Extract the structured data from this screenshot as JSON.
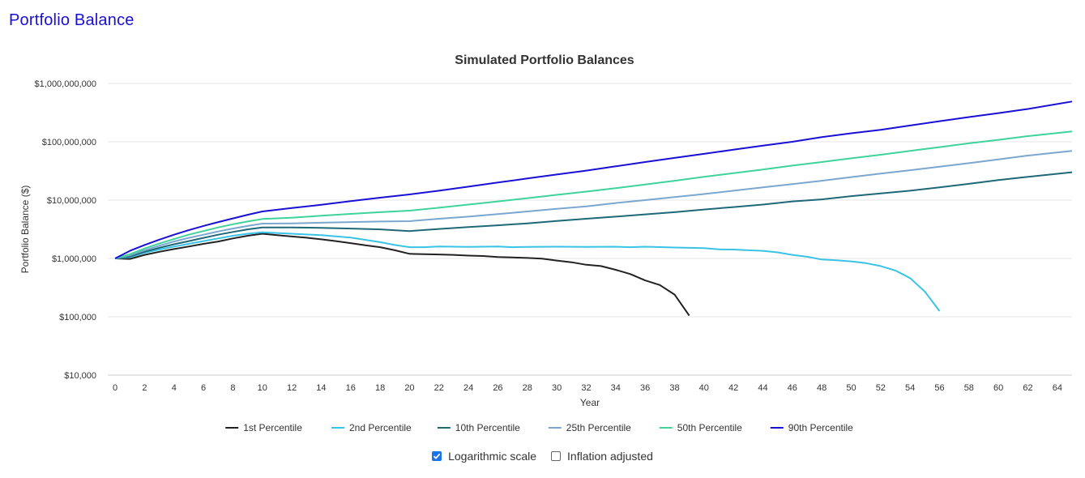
{
  "page": {
    "title": "Portfolio Balance"
  },
  "controls": {
    "log_scale": {
      "label": "Logarithmic scale",
      "checked": true
    },
    "inflation": {
      "label": "Inflation adjusted",
      "checked": false
    }
  },
  "chart_data": {
    "type": "line",
    "title": "Simulated Portfolio Balances",
    "xlabel": "Year",
    "ylabel": "Portfolio Balance ($)",
    "yscale": "log",
    "ylim": [
      10000,
      1000000000
    ],
    "xlim": [
      -0.5,
      65
    ],
    "x_ticks": [
      0,
      2,
      4,
      6,
      8,
      10,
      12,
      14,
      16,
      18,
      20,
      22,
      24,
      26,
      28,
      30,
      32,
      34,
      36,
      38,
      40,
      42,
      44,
      46,
      48,
      50,
      52,
      54,
      56,
      58,
      60,
      62,
      64
    ],
    "y_ticks": [
      {
        "value": 10000,
        "label": "$10,000"
      },
      {
        "value": 100000,
        "label": "$100,000"
      },
      {
        "value": 1000000,
        "label": "$1,000,000"
      },
      {
        "value": 10000000,
        "label": "$10,000,000"
      },
      {
        "value": 100000000,
        "label": "$100,000,000"
      },
      {
        "value": 1000000000,
        "label": "$1,000,000,000"
      }
    ],
    "legend_position": "bottom",
    "series": [
      {
        "name": "1st Percentile",
        "color": "#222222",
        "points": [
          [
            0,
            1000000
          ],
          [
            1,
            980000
          ],
          [
            2,
            1150000
          ],
          [
            3,
            1300000
          ],
          [
            4,
            1450000
          ],
          [
            5,
            1600000
          ],
          [
            6,
            1780000
          ],
          [
            7,
            1950000
          ],
          [
            8,
            2200000
          ],
          [
            9,
            2450000
          ],
          [
            10,
            2650000
          ],
          [
            11,
            2500000
          ],
          [
            12,
            2380000
          ],
          [
            13,
            2270000
          ],
          [
            14,
            2130000
          ],
          [
            15,
            1980000
          ],
          [
            16,
            1830000
          ],
          [
            17,
            1680000
          ],
          [
            18,
            1560000
          ],
          [
            19,
            1380000
          ],
          [
            20,
            1200000
          ],
          [
            21,
            1180000
          ],
          [
            22,
            1170000
          ],
          [
            23,
            1150000
          ],
          [
            24,
            1120000
          ],
          [
            25,
            1100000
          ],
          [
            26,
            1060000
          ],
          [
            27,
            1040000
          ],
          [
            28,
            1020000
          ],
          [
            29,
            990000
          ],
          [
            30,
            920000
          ],
          [
            31,
            860000
          ],
          [
            32,
            780000
          ],
          [
            33,
            740000
          ],
          [
            34,
            640000
          ],
          [
            35,
            540000
          ],
          [
            36,
            420000
          ],
          [
            37,
            350000
          ],
          [
            38,
            240000
          ],
          [
            39,
            105000
          ]
        ]
      },
      {
        "name": "2nd Percentile",
        "color": "#39c3e6",
        "points": [
          [
            0,
            1000000
          ],
          [
            1,
            1050000
          ],
          [
            2,
            1250000
          ],
          [
            3,
            1420000
          ],
          [
            4,
            1600000
          ],
          [
            5,
            1780000
          ],
          [
            6,
            1980000
          ],
          [
            7,
            2200000
          ],
          [
            8,
            2450000
          ],
          [
            9,
            2650000
          ],
          [
            10,
            2800000
          ],
          [
            12,
            2650000
          ],
          [
            14,
            2500000
          ],
          [
            16,
            2280000
          ],
          [
            18,
            1900000
          ],
          [
            19,
            1700000
          ],
          [
            20,
            1560000
          ],
          [
            21,
            1560000
          ],
          [
            22,
            1600000
          ],
          [
            24,
            1580000
          ],
          [
            26,
            1600000
          ],
          [
            27,
            1560000
          ],
          [
            28,
            1580000
          ],
          [
            30,
            1590000
          ],
          [
            32,
            1580000
          ],
          [
            34,
            1590000
          ],
          [
            35,
            1560000
          ],
          [
            36,
            1590000
          ],
          [
            38,
            1540000
          ],
          [
            40,
            1500000
          ],
          [
            41,
            1430000
          ],
          [
            42,
            1420000
          ],
          [
            43,
            1380000
          ],
          [
            44,
            1350000
          ],
          [
            45,
            1270000
          ],
          [
            46,
            1150000
          ],
          [
            47,
            1070000
          ],
          [
            48,
            960000
          ],
          [
            49,
            930000
          ],
          [
            50,
            890000
          ],
          [
            51,
            830000
          ],
          [
            52,
            740000
          ],
          [
            53,
            620000
          ],
          [
            54,
            460000
          ],
          [
            55,
            270000
          ],
          [
            56,
            125000
          ]
        ]
      },
      {
        "name": "10th Percentile",
        "color": "#1e6878",
        "points": [
          [
            0,
            1000000
          ],
          [
            1,
            1080000
          ],
          [
            2,
            1300000
          ],
          [
            3,
            1520000
          ],
          [
            4,
            1750000
          ],
          [
            5,
            1980000
          ],
          [
            6,
            2250000
          ],
          [
            7,
            2550000
          ],
          [
            8,
            2850000
          ],
          [
            9,
            3150000
          ],
          [
            10,
            3400000
          ],
          [
            12,
            3400000
          ],
          [
            14,
            3350000
          ],
          [
            16,
            3250000
          ],
          [
            18,
            3150000
          ],
          [
            20,
            2950000
          ],
          [
            22,
            3200000
          ],
          [
            24,
            3450000
          ],
          [
            26,
            3700000
          ],
          [
            28,
            4000000
          ],
          [
            30,
            4400000
          ],
          [
            32,
            4800000
          ],
          [
            34,
            5200000
          ],
          [
            36,
            5700000
          ],
          [
            38,
            6200000
          ],
          [
            40,
            6900000
          ],
          [
            42,
            7600000
          ],
          [
            44,
            8400000
          ],
          [
            46,
            9500000
          ],
          [
            48,
            10300000
          ],
          [
            50,
            11700000
          ],
          [
            52,
            13000000
          ],
          [
            54,
            14500000
          ],
          [
            56,
            16500000
          ],
          [
            58,
            19000000
          ],
          [
            60,
            22000000
          ],
          [
            62,
            25000000
          ],
          [
            65,
            30000000
          ]
        ]
      },
      {
        "name": "25th Percentile",
        "color": "#7ba7cf",
        "points": [
          [
            0,
            1000000
          ],
          [
            1,
            1130000
          ],
          [
            2,
            1380000
          ],
          [
            3,
            1650000
          ],
          [
            4,
            1950000
          ],
          [
            5,
            2250000
          ],
          [
            6,
            2550000
          ],
          [
            7,
            2900000
          ],
          [
            8,
            3250000
          ],
          [
            9,
            3600000
          ],
          [
            10,
            3950000
          ],
          [
            12,
            4000000
          ],
          [
            14,
            4100000
          ],
          [
            16,
            4200000
          ],
          [
            18,
            4300000
          ],
          [
            20,
            4350000
          ],
          [
            22,
            4800000
          ],
          [
            24,
            5200000
          ],
          [
            26,
            5750000
          ],
          [
            28,
            6400000
          ],
          [
            30,
            7100000
          ],
          [
            32,
            7800000
          ],
          [
            34,
            8900000
          ],
          [
            36,
            10000000
          ],
          [
            38,
            11300000
          ],
          [
            40,
            12700000
          ],
          [
            42,
            14500000
          ],
          [
            44,
            16500000
          ],
          [
            46,
            18800000
          ],
          [
            48,
            21500000
          ],
          [
            50,
            24800000
          ],
          [
            52,
            28500000
          ],
          [
            54,
            32500000
          ],
          [
            56,
            37500000
          ],
          [
            58,
            43000000
          ],
          [
            60,
            50000000
          ],
          [
            62,
            58000000
          ],
          [
            65,
            70000000
          ]
        ]
      },
      {
        "name": "50th Percentile",
        "color": "#3fd39c",
        "points": [
          [
            0,
            1000000
          ],
          [
            1,
            1180000
          ],
          [
            2,
            1480000
          ],
          [
            3,
            1800000
          ],
          [
            4,
            2150000
          ],
          [
            5,
            2550000
          ],
          [
            6,
            2950000
          ],
          [
            7,
            3400000
          ],
          [
            8,
            3850000
          ],
          [
            9,
            4300000
          ],
          [
            10,
            4750000
          ],
          [
            12,
            5000000
          ],
          [
            14,
            5400000
          ],
          [
            16,
            5800000
          ],
          [
            18,
            6200000
          ],
          [
            20,
            6600000
          ],
          [
            22,
            7400000
          ],
          [
            24,
            8400000
          ],
          [
            26,
            9500000
          ],
          [
            28,
            10800000
          ],
          [
            30,
            12300000
          ],
          [
            32,
            14000000
          ],
          [
            34,
            16000000
          ],
          [
            36,
            18500000
          ],
          [
            38,
            21500000
          ],
          [
            40,
            25000000
          ],
          [
            42,
            29000000
          ],
          [
            44,
            33500000
          ],
          [
            46,
            39000000
          ],
          [
            48,
            45000000
          ],
          [
            50,
            52000000
          ],
          [
            52,
            60000000
          ],
          [
            54,
            70000000
          ],
          [
            56,
            81000000
          ],
          [
            58,
            94000000
          ],
          [
            60,
            108000000
          ],
          [
            62,
            125000000
          ],
          [
            65,
            150000000
          ]
        ]
      },
      {
        "name": "90th Percentile",
        "color": "#1a0fd4",
        "points": [
          [
            0,
            1000000
          ],
          [
            1,
            1350000
          ],
          [
            2,
            1700000
          ],
          [
            3,
            2100000
          ],
          [
            4,
            2550000
          ],
          [
            5,
            3050000
          ],
          [
            6,
            3600000
          ],
          [
            7,
            4200000
          ],
          [
            8,
            4850000
          ],
          [
            9,
            5600000
          ],
          [
            10,
            6400000
          ],
          [
            12,
            7300000
          ],
          [
            14,
            8300000
          ],
          [
            16,
            9600000
          ],
          [
            18,
            11000000
          ],
          [
            20,
            12500000
          ],
          [
            22,
            14500000
          ],
          [
            24,
            17000000
          ],
          [
            26,
            20000000
          ],
          [
            28,
            23500000
          ],
          [
            30,
            27500000
          ],
          [
            32,
            32000000
          ],
          [
            34,
            38000000
          ],
          [
            36,
            45000000
          ],
          [
            38,
            53000000
          ],
          [
            40,
            62000000
          ],
          [
            42,
            73000000
          ],
          [
            44,
            86000000
          ],
          [
            46,
            100000000
          ],
          [
            48,
            120000000
          ],
          [
            50,
            140000000
          ],
          [
            52,
            160000000
          ],
          [
            54,
            190000000
          ],
          [
            56,
            225000000
          ],
          [
            58,
            265000000
          ],
          [
            60,
            310000000
          ],
          [
            62,
            365000000
          ],
          [
            65,
            490000000
          ]
        ]
      }
    ]
  }
}
